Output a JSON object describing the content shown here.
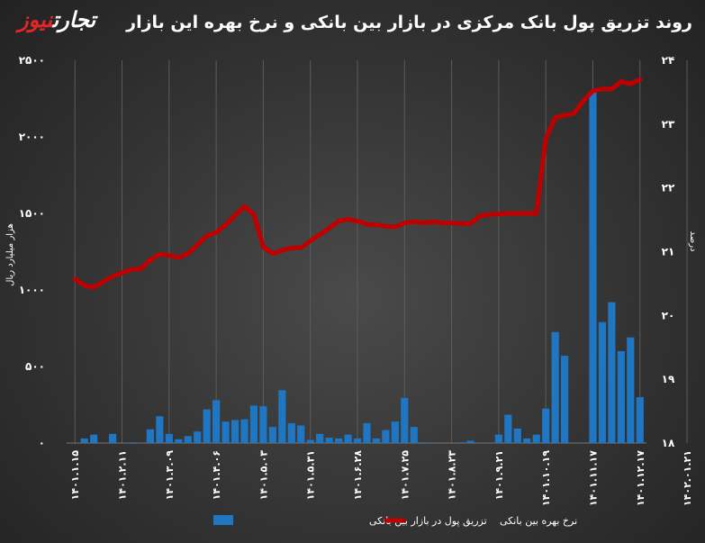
{
  "header": {
    "title": "روند تزریق پول بانک مرکزی در بازار بین بانکی و نرخ بهره این بازار",
    "logo_part1": "تجارت",
    "logo_part2": "نیوز"
  },
  "colors": {
    "bar": "#1f77c4",
    "line": "#c00000",
    "grid": "#5c5c5c"
  },
  "chart_data": {
    "type": "bar",
    "left_axis": {
      "label": "هزار میلیارد ریال",
      "ylim": [
        0,
        2500
      ],
      "ticks": [
        "۲۵۰۰",
        "۲۰۰۰",
        "۱۵۰۰",
        "۱۰۰۰",
        "۵۰۰",
        "۰"
      ]
    },
    "right_axis": {
      "label": "درصد",
      "ylim": [
        18,
        24
      ],
      "ticks": [
        "۲۴",
        "۲۳",
        "۲۲",
        "۲۱",
        "۲۰",
        "۱۹",
        "۱۸"
      ]
    },
    "x_tick_labels": [
      "۱۴۰۱.۱.۱۵",
      "۱۴۰۱.۲.۱۱",
      "۱۴۰۱.۳.۰۹",
      "۱۴۰۱.۴.۰۶",
      "۱۴۰۱.۵.۰۳",
      "۱۴۰۱.۵.۳۱",
      "۱۴۰۱.۶.۲۸",
      "۱۴۰۱.۷.۲۵",
      "۱۴۰۱.۸.۲۳",
      "۱۴۰۱.۹.۲۱",
      "۱۴۰۱.۱۰.۱۹",
      "۱۴۰۱.۱۱.۱۷",
      "۱۴۰۱.۱۲.۱۷",
      "۱۴۰۲.۰۱.۲۱",
      "۱۴۰۲.۰۲.۲۰"
    ],
    "x_tick_positions": [
      0,
      5,
      10,
      15,
      20,
      25,
      30,
      35,
      40,
      45,
      50,
      55,
      60,
      65,
      70
    ],
    "series": [
      {
        "name": "تزریق پول در بازار بین بانکی",
        "kind": "bar",
        "axis": "left",
        "values": [
          0,
          30,
          55,
          0,
          60,
          0,
          5,
          0,
          90,
          175,
          60,
          25,
          45,
          75,
          220,
          280,
          140,
          150,
          155,
          245,
          240,
          105,
          345,
          130,
          115,
          20,
          60,
          35,
          30,
          55,
          30,
          130,
          30,
          85,
          140,
          295,
          105,
          5,
          0,
          0,
          0,
          5,
          15,
          0,
          0,
          55,
          185,
          95,
          30,
          55,
          225,
          725,
          570,
          0,
          0,
          2300,
          790,
          920,
          600,
          690,
          300
        ]
      },
      {
        "name": "نرخ بهره بین بانکی",
        "kind": "line",
        "axis": "right",
        "values": [
          20.57,
          20.47,
          20.44,
          20.53,
          20.61,
          20.67,
          20.72,
          20.73,
          20.87,
          20.96,
          20.94,
          20.91,
          20.97,
          21.11,
          21.25,
          21.3,
          21.42,
          21.57,
          21.71,
          21.58,
          21.07,
          20.97,
          21.02,
          21.06,
          21.06,
          21.17,
          21.27,
          21.37,
          21.48,
          21.51,
          21.48,
          21.43,
          21.42,
          21.4,
          21.39,
          21.45,
          21.47,
          21.45,
          21.47,
          21.45,
          21.45,
          21.44,
          21.44,
          21.56,
          21.58,
          21.59,
          21.6,
          21.6,
          21.6,
          21.6,
          22.78,
          23.1,
          23.14,
          23.17,
          23.37,
          23.52,
          23.55,
          23.55,
          23.67,
          23.63,
          23.7
        ]
      }
    ],
    "legend_position": "bottom",
    "grid": true
  }
}
